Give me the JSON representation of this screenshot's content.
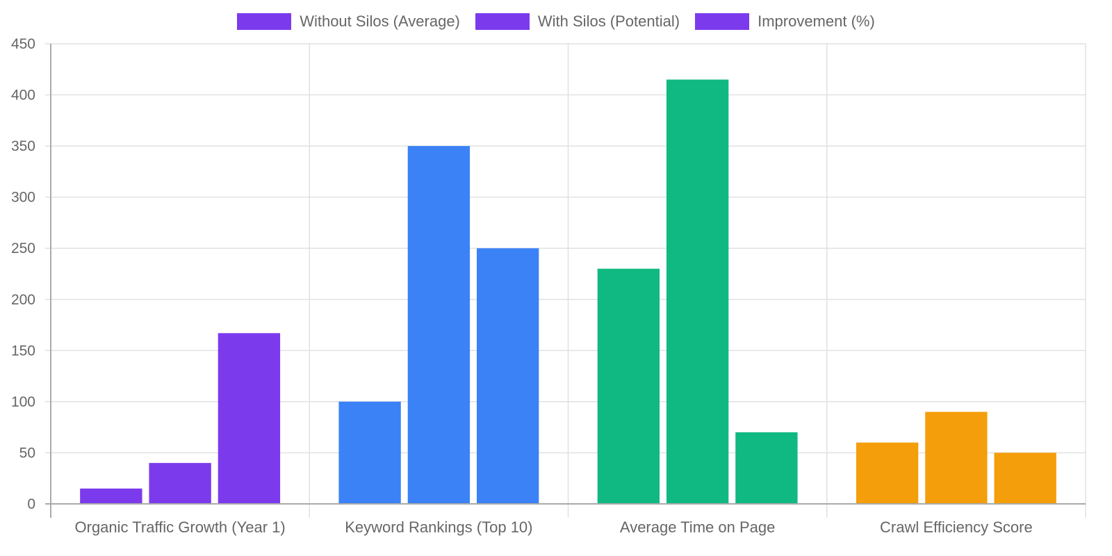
{
  "legend": {
    "items": [
      {
        "label": "Without Silos (Average)",
        "color": "#7c3aed"
      },
      {
        "label": "With Silos (Potential)",
        "color": "#7c3aed"
      },
      {
        "label": "Improvement (%)",
        "color": "#7c3aed"
      }
    ]
  },
  "chart_data": {
    "type": "bar",
    "title": "",
    "xlabel": "",
    "ylabel": "",
    "ylim": [
      0,
      450
    ],
    "yticks": [
      0,
      50,
      100,
      150,
      200,
      250,
      300,
      350,
      400,
      450
    ],
    "grid": true,
    "legend_position": "top",
    "categories": [
      "Organic Traffic Growth (Year 1)",
      "Keyword Rankings (Top 10)",
      "Average Time on Page",
      "Crawl Efficiency Score"
    ],
    "category_colors": [
      "#7c3aed",
      "#3b82f6",
      "#10b981",
      "#f59e0b"
    ],
    "series": [
      {
        "name": "Without Silos (Average)",
        "values": [
          15,
          100,
          230,
          60
        ]
      },
      {
        "name": "With Silos (Potential)",
        "values": [
          40,
          350,
          415,
          90
        ]
      },
      {
        "name": "Improvement (%)",
        "values": [
          167,
          250,
          70,
          50
        ]
      }
    ]
  }
}
